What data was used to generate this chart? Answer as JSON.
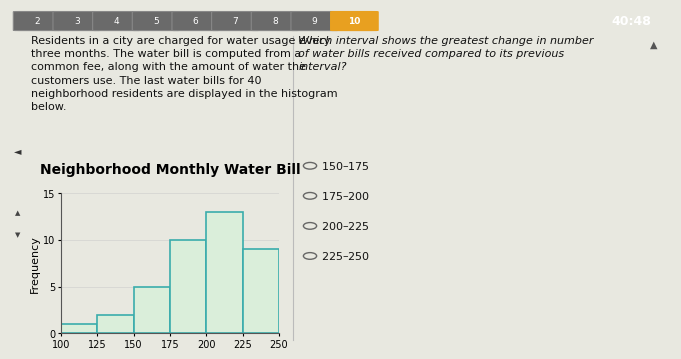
{
  "title": "Neighborhood Monthly Water Bill",
  "ylabel": "Frequency",
  "bin_edges": [
    100,
    125,
    150,
    175,
    200,
    225,
    250
  ],
  "frequencies": [
    1,
    2,
    5,
    10,
    13,
    9
  ],
  "ylim": [
    0,
    15
  ],
  "yticks": [
    0,
    5,
    10,
    15
  ],
  "xticks": [
    100,
    125,
    150,
    175,
    200,
    225,
    250
  ],
  "bar_facecolor": "#daeeda",
  "bar_edgecolor": "#3aacac",
  "bar_linewidth": 1.2,
  "title_fontsize": 10,
  "title_fontweight": "bold",
  "tick_fontsize": 7,
  "ylabel_fontsize": 8,
  "bg_color": "#e8e8e0",
  "left_panel_text": "Residents in a city are charged for water usage every\nthree months. The water bill is computed from a\ncommon fee, along with the amount of water the\ncustomers use. The last water bills for 40\nneighborhood residents are displayed in the histogram\nbelow.",
  "right_panel_question": "Which interval shows the greatest change in number\nof water bills received compared to its previous\ninterval?",
  "right_panel_options": [
    "$150–$175",
    "$175–$200",
    "$200–$225",
    "$225–$250"
  ],
  "header_bg": "#5a5a5a",
  "header_tab_bg": "#6a6a6a",
  "header_tab_active_bg": "#e8a020",
  "header_tab_active_border": "#e8a020",
  "header_tab_labels": [
    "2",
    "3",
    "4",
    "5",
    "6",
    "7",
    "8",
    "9",
    "10"
  ],
  "header_tab_active": "10",
  "timer_text": "40:48",
  "text_fontsize": 8,
  "question_fontsize": 8,
  "option_fontsize": 8,
  "divider_color": "#bbbbbb",
  "left_sidebar_color": "#c8c8c8",
  "left_margin_icons": [
    "◄",
    "▲",
    "▼"
  ],
  "scroll_arrow": "▲"
}
